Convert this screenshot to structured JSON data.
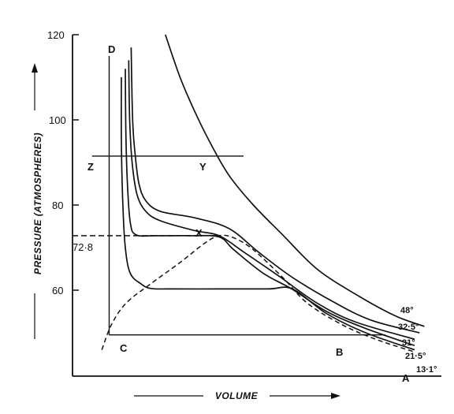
{
  "chart_data": {
    "type": "line",
    "title": "",
    "xlabel": "VOLUME",
    "ylabel": "PRESSURE (ATMOSPHERES)",
    "ylim": [
      45,
      120
    ],
    "y_ticks": [
      {
        "value": 120,
        "label": "120"
      },
      {
        "value": 100,
        "label": "100"
      },
      {
        "value": 80,
        "label": "80"
      },
      {
        "value": 60,
        "label": "60"
      }
    ],
    "x_ticks": [],
    "grid": false,
    "legend": "none",
    "series": [
      {
        "name": "48°",
        "points": [
          [
            19,
            120
          ],
          [
            22,
            110
          ],
          [
            25,
            102
          ],
          [
            28,
            95
          ],
          [
            32,
            87
          ],
          [
            37,
            80
          ],
          [
            43,
            73
          ],
          [
            50,
            65
          ],
          [
            58,
            59
          ],
          [
            66,
            54
          ],
          [
            72,
            51.5
          ]
        ]
      },
      {
        "name": "32·5°",
        "points": [
          [
            12,
            117
          ],
          [
            12.3,
            100
          ],
          [
            12.8,
            92
          ],
          [
            13.6,
            85
          ],
          [
            15,
            81
          ],
          [
            18,
            78.5
          ],
          [
            25,
            77
          ],
          [
            32,
            74.5
          ],
          [
            38,
            69
          ],
          [
            45,
            63
          ],
          [
            53,
            57.5
          ],
          [
            61,
            53
          ],
          [
            71,
            50
          ]
        ]
      },
      {
        "name": "31°",
        "points": [
          [
            11.5,
            114
          ],
          [
            11.7,
            100
          ],
          [
            12.2,
            90
          ],
          [
            13.2,
            82.5
          ],
          [
            15,
            78.5
          ],
          [
            18,
            76.3
          ],
          [
            25,
            74
          ],
          [
            30,
            72.8
          ],
          [
            35,
            69
          ],
          [
            42,
            63.5
          ],
          [
            50,
            57
          ],
          [
            58,
            52.5
          ],
          [
            70,
            48.5
          ]
        ]
      },
      {
        "name": "21·5°",
        "points": [
          [
            10.8,
            112
          ],
          [
            10.9,
            98
          ],
          [
            11.2,
            86
          ],
          [
            11.8,
            76
          ],
          [
            13,
            73
          ],
          [
            17,
            72.8
          ],
          [
            24,
            72.8
          ],
          [
            30,
            72.5
          ],
          [
            33,
            69.5
          ],
          [
            39,
            64
          ],
          [
            45,
            60.2
          ],
          [
            52,
            55
          ],
          [
            60,
            51
          ],
          [
            70,
            47
          ]
        ]
      },
      {
        "name": "13·1°",
        "points": [
          [
            10,
            110
          ],
          [
            10,
            95
          ],
          [
            10.3,
            80
          ],
          [
            10.8,
            70
          ],
          [
            11.8,
            64
          ],
          [
            14,
            61.5
          ],
          [
            16,
            60.4
          ],
          [
            20,
            60.3
          ],
          [
            30,
            60.3
          ],
          [
            40,
            60.3
          ],
          [
            45,
            60.3
          ],
          [
            52,
            54.5
          ],
          [
            60,
            50
          ],
          [
            70,
            46
          ]
        ]
      }
    ],
    "saturation_curve": {
      "points": [
        [
          6,
          46
        ],
        [
          8,
          52
        ],
        [
          11,
          57
        ],
        [
          16,
          61.5
        ],
        [
          22,
          66.5
        ],
        [
          27,
          71
        ],
        [
          30,
          72.8
        ],
        [
          33,
          72.3
        ],
        [
          37,
          69.5
        ],
        [
          43,
          63
        ],
        [
          48,
          57
        ],
        [
          55,
          52
        ],
        [
          62,
          48.5
        ],
        [
          70,
          45.5
        ]
      ]
    },
    "reference_lines": [
      {
        "label": "Z — Y",
        "start": [
          4,
          91.5
        ],
        "end": [
          35,
          91.5
        ]
      },
      {
        "label": "72·8",
        "start": [
          0,
          72.8
        ],
        "end": [
          30,
          72.8
        ]
      },
      {
        "label": "C — B",
        "start": [
          7.5,
          49.5
        ],
        "end": [
          64,
          49.5
        ]
      },
      {
        "label": "D — C",
        "start": [
          7.5,
          115
        ],
        "end": [
          7.5,
          49.5
        ]
      }
    ],
    "annotations": [
      "D",
      "Z",
      "Y",
      "X",
      "72·8",
      "C",
      "B",
      "A"
    ],
    "series_labels": [
      "48°",
      "32·5°",
      "31°",
      "21·5°",
      "13·1°"
    ]
  }
}
